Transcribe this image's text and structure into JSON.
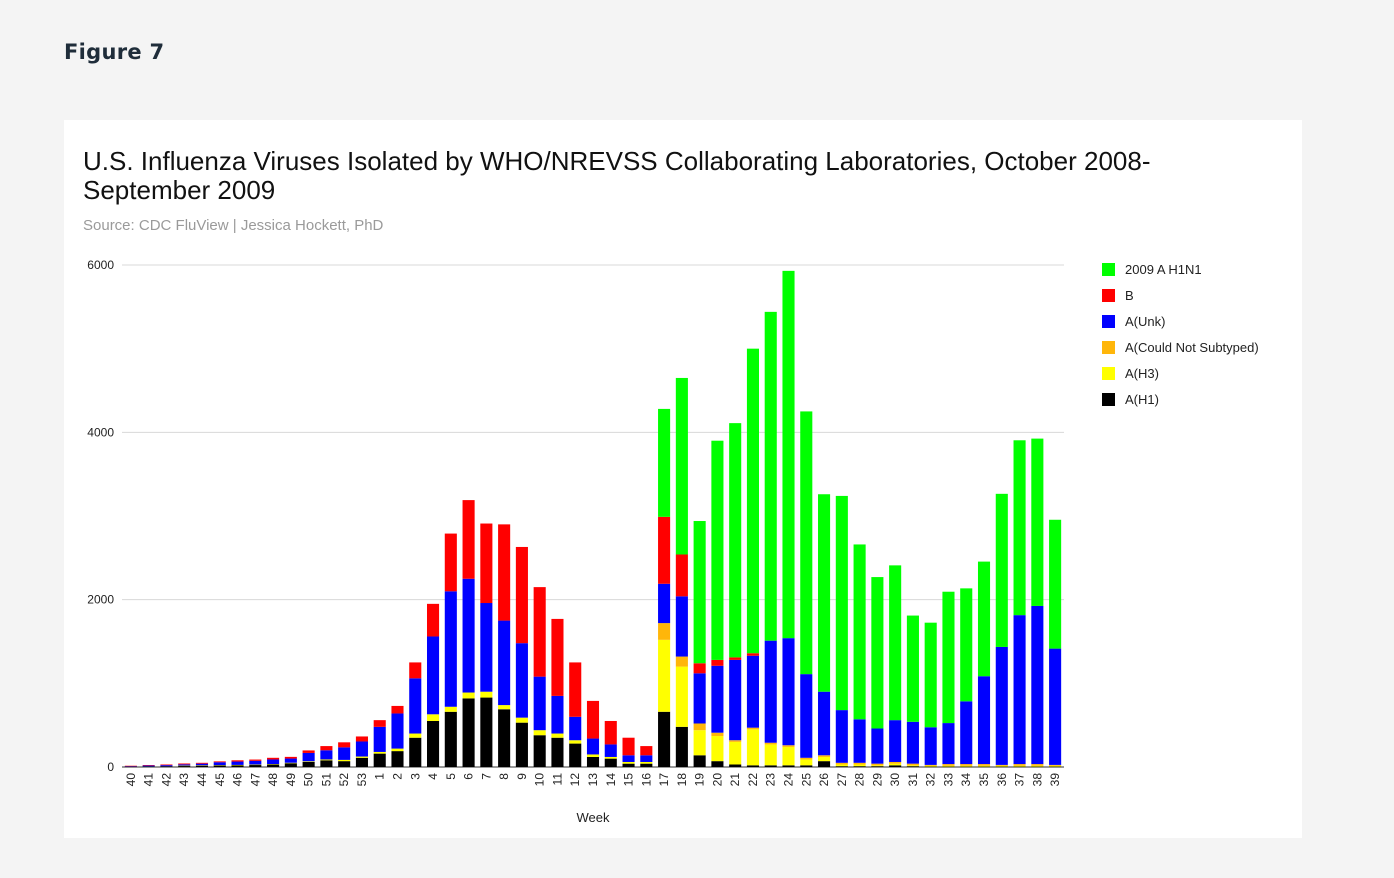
{
  "figure_label": "Figure 7",
  "chart_data": {
    "type": "bar",
    "stacked": true,
    "title": "U.S. Influenza Viruses Isolated by WHO/NREVSS Collaborating Laboratories, October 2008-September 2009",
    "subtitle": "Source: CDC FluView | Jessica Hockett, PhD",
    "xlabel": "Week",
    "ylabel": "",
    "ylim": [
      0,
      6000
    ],
    "yticks": [
      0,
      2000,
      4000,
      6000
    ],
    "grid": true,
    "legend_position": "right",
    "categories": [
      "40",
      "41",
      "42",
      "43",
      "44",
      "45",
      "46",
      "47",
      "48",
      "49",
      "50",
      "51",
      "52",
      "53",
      "1",
      "2",
      "3",
      "4",
      "5",
      "6",
      "7",
      "8",
      "9",
      "10",
      "11",
      "12",
      "13",
      "14",
      "15",
      "16",
      "17",
      "18",
      "19",
      "20",
      "21",
      "22",
      "23",
      "24",
      "25",
      "26",
      "27",
      "28",
      "29",
      "30",
      "31",
      "32",
      "33",
      "34",
      "35",
      "36",
      "37",
      "38",
      "39"
    ],
    "series": [
      {
        "name": "A(H1)",
        "color": "#000000",
        "values": [
          5,
          8,
          10,
          15,
          18,
          20,
          22,
          25,
          30,
          45,
          60,
          80,
          70,
          110,
          160,
          190,
          350,
          550,
          660,
          820,
          830,
          690,
          530,
          380,
          350,
          280,
          120,
          100,
          40,
          40,
          660,
          480,
          140,
          70,
          30,
          20,
          20,
          20,
          20,
          70,
          10,
          10,
          10,
          20,
          10,
          5,
          5,
          5,
          5,
          5,
          5,
          5,
          5
        ]
      },
      {
        "name": "A(H3)",
        "color": "#ffff00",
        "values": [
          0,
          0,
          0,
          2,
          2,
          2,
          3,
          4,
          5,
          6,
          8,
          10,
          15,
          15,
          20,
          30,
          50,
          80,
          60,
          70,
          70,
          50,
          60,
          60,
          50,
          40,
          30,
          20,
          20,
          20,
          860,
          720,
          300,
          300,
          270,
          430,
          250,
          220,
          70,
          50,
          20,
          20,
          10,
          20,
          10,
          10,
          10,
          10,
          10,
          10,
          10,
          10,
          10
        ]
      },
      {
        "name": "A(Could Not Subtyped)",
        "color": "#ffb60a",
        "values": [
          0,
          0,
          0,
          0,
          0,
          0,
          0,
          0,
          0,
          0,
          0,
          0,
          0,
          0,
          0,
          0,
          0,
          0,
          0,
          0,
          0,
          0,
          0,
          0,
          0,
          0,
          0,
          0,
          0,
          0,
          200,
          120,
          80,
          40,
          20,
          20,
          20,
          20,
          20,
          20,
          20,
          20,
          20,
          20,
          20,
          10,
          20,
          20,
          20,
          10,
          20,
          20,
          10
        ]
      },
      {
        "name": "A(Unk)",
        "color": "#0000ff",
        "values": [
          5,
          10,
          12,
          15,
          20,
          35,
          40,
          45,
          55,
          50,
          100,
          110,
          150,
          180,
          300,
          420,
          660,
          930,
          1380,
          1360,
          1060,
          1010,
          890,
          640,
          450,
          280,
          190,
          150,
          80,
          80,
          470,
          720,
          600,
          800,
          960,
          860,
          1220,
          1280,
          1000,
          760,
          630,
          520,
          420,
          500,
          500,
          450,
          490,
          750,
          1050,
          1410,
          1780,
          1890,
          1390
        ]
      },
      {
        "name": "B",
        "color": "#ff0000",
        "values": [
          5,
          5,
          8,
          10,
          10,
          10,
          15,
          15,
          20,
          20,
          30,
          50,
          60,
          60,
          80,
          90,
          190,
          390,
          690,
          940,
          950,
          1150,
          1150,
          1070,
          920,
          650,
          450,
          280,
          210,
          110,
          800,
          500,
          120,
          70,
          30,
          30,
          0,
          0,
          0,
          0,
          0,
          0,
          0,
          0,
          0,
          0,
          0,
          0,
          0,
          0,
          0,
          0,
          0
        ]
      },
      {
        "name": "2009 A H1N1",
        "color": "#00ff00",
        "values": [
          0,
          0,
          0,
          0,
          0,
          0,
          0,
          0,
          0,
          0,
          0,
          0,
          0,
          0,
          0,
          0,
          0,
          0,
          0,
          0,
          0,
          0,
          0,
          0,
          0,
          0,
          0,
          0,
          0,
          0,
          1290,
          2110,
          1700,
          2620,
          2800,
          3640,
          3930,
          4390,
          3140,
          2360,
          2560,
          2090,
          1810,
          1850,
          1270,
          1250,
          1570,
          1350,
          1370,
          1830,
          2090,
          2000,
          1540
        ]
      }
    ]
  }
}
